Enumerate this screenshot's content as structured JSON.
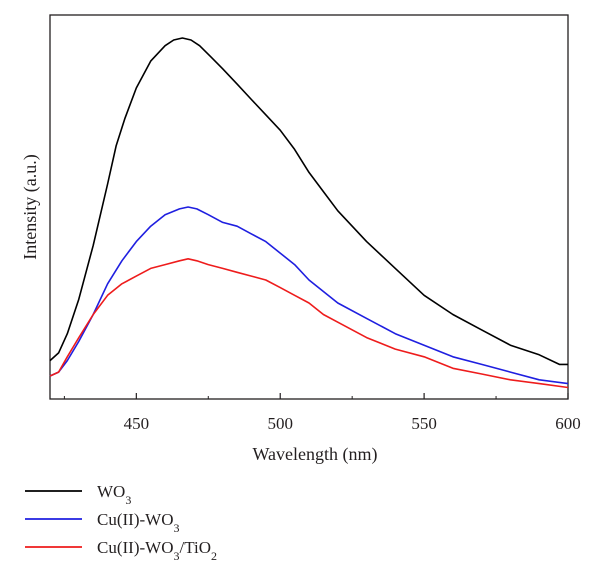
{
  "chart_data": {
    "type": "line",
    "title": "",
    "xlabel": "Wavelength (nm)",
    "ylabel": "Intensity (a.u.)",
    "xlim": [
      420,
      600
    ],
    "ylim": [
      0,
      1.0
    ],
    "x_ticks": [
      450,
      500,
      550,
      600
    ],
    "x_tick_labels": [
      "450",
      "500",
      "550",
      "600"
    ],
    "y_ticks_shown": false,
    "grid": false,
    "legend_position": "bottom-left",
    "series": [
      {
        "name": "WO3",
        "legend_label": {
          "base": "WO",
          "sub": "3",
          "rest": ""
        },
        "color": "#000000",
        "x": [
          420,
          423,
          426,
          430,
          435,
          440,
          443,
          446,
          450,
          455,
          460,
          463,
          466,
          469,
          472,
          476,
          480,
          485,
          490,
          495,
          500,
          505,
          510,
          515,
          520,
          530,
          540,
          550,
          560,
          570,
          580,
          590,
          597,
          600
        ],
        "y": [
          0.1,
          0.12,
          0.17,
          0.26,
          0.4,
          0.56,
          0.66,
          0.73,
          0.81,
          0.88,
          0.92,
          0.935,
          0.94,
          0.935,
          0.92,
          0.89,
          0.86,
          0.82,
          0.78,
          0.74,
          0.7,
          0.65,
          0.59,
          0.54,
          0.49,
          0.41,
          0.34,
          0.27,
          0.22,
          0.18,
          0.14,
          0.115,
          0.09,
          0.09
        ]
      },
      {
        "name": "Cu(II)-WO3",
        "legend_label": {
          "base": "Cu(II)-WO",
          "sub": "3",
          "rest": ""
        },
        "color": "#1f1fe0",
        "x": [
          420,
          423,
          426,
          430,
          435,
          440,
          445,
          450,
          455,
          460,
          465,
          468,
          471,
          475,
          480,
          485,
          490,
          495,
          500,
          505,
          510,
          515,
          520,
          530,
          540,
          550,
          560,
          570,
          580,
          590,
          600
        ],
        "y": [
          0.06,
          0.07,
          0.1,
          0.15,
          0.22,
          0.3,
          0.36,
          0.41,
          0.45,
          0.48,
          0.495,
          0.5,
          0.495,
          0.48,
          0.46,
          0.45,
          0.43,
          0.41,
          0.38,
          0.35,
          0.31,
          0.28,
          0.25,
          0.21,
          0.17,
          0.14,
          0.11,
          0.09,
          0.07,
          0.05,
          0.04
        ]
      },
      {
        "name": "Cu(II)-WO3/TiO2",
        "legend_label": {
          "base": "Cu(II)-WO",
          "sub": "3",
          "rest": "/TiO",
          "sub2": "2"
        },
        "color": "#ee1c1c",
        "x": [
          420,
          423,
          426,
          430,
          435,
          440,
          445,
          450,
          455,
          460,
          465,
          468,
          471,
          475,
          480,
          485,
          490,
          495,
          500,
          505,
          510,
          515,
          520,
          530,
          540,
          550,
          560,
          570,
          580,
          590,
          600
        ],
        "y": [
          0.06,
          0.07,
          0.11,
          0.16,
          0.22,
          0.27,
          0.3,
          0.32,
          0.34,
          0.35,
          0.36,
          0.365,
          0.36,
          0.35,
          0.34,
          0.33,
          0.32,
          0.31,
          0.29,
          0.27,
          0.25,
          0.22,
          0.2,
          0.16,
          0.13,
          0.11,
          0.08,
          0.065,
          0.05,
          0.04,
          0.03
        ]
      }
    ]
  }
}
